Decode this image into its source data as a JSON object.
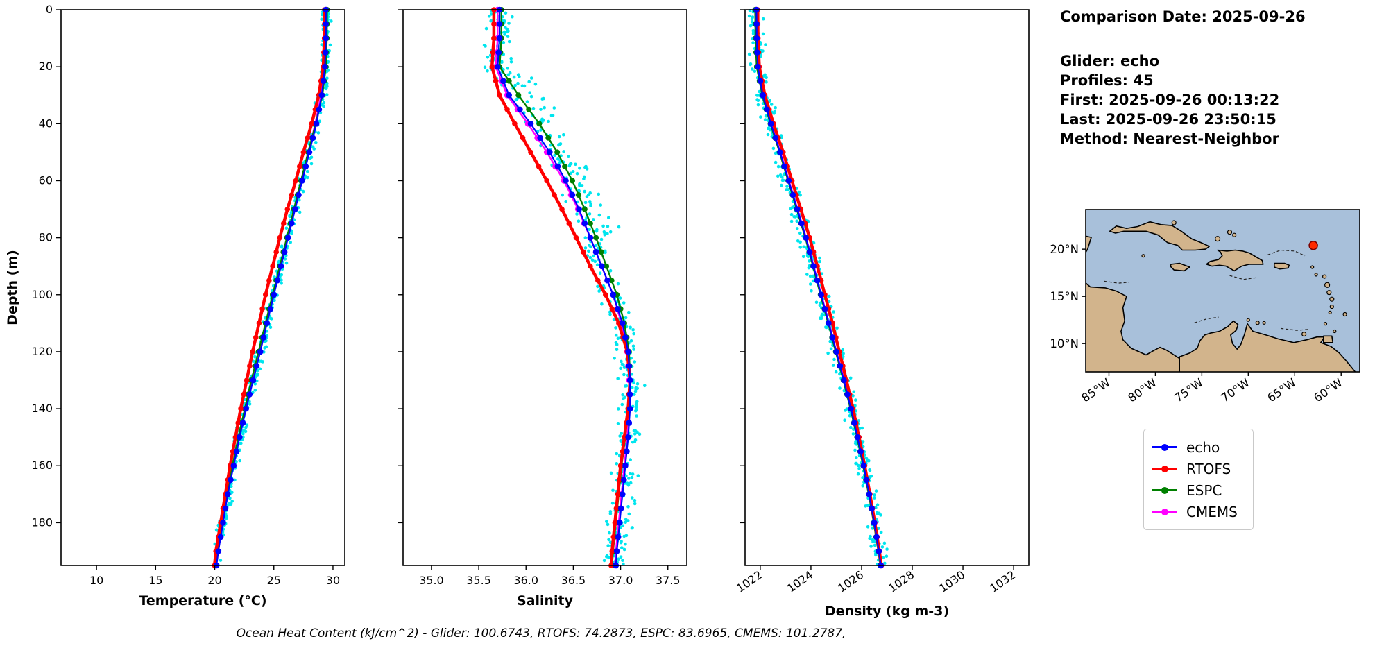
{
  "info_panel": {
    "title": "Comparison Date: 2025-09-26",
    "lines": [
      "Glider: echo",
      "Profiles: 45",
      "First: 2025-09-26 00:13:22",
      "Last: 2025-09-26 23:50:15",
      "Method: Nearest-Neighbor"
    ]
  },
  "legend": {
    "entries": [
      {
        "label": "echo",
        "color": "#0000ff"
      },
      {
        "label": "RTOFS",
        "color": "#ff0000"
      },
      {
        "label": "ESPC",
        "color": "#008000"
      },
      {
        "label": "CMEMS",
        "color": "#ff00ff"
      }
    ]
  },
  "caption": "Ocean Heat Content (kJ/cm^2) - Glider: 100.6743,  RTOFS: 74.2873,  ESPC: 83.6965,  CMEMS: 101.2787,",
  "colors": {
    "glider_scatter": "#00e5ee",
    "ocean": "#a8c0da",
    "land": "#d2b48c",
    "coastline": "#000000",
    "glider_marker_fill": "#ff2a00",
    "glider_marker_edge": "#7a0000"
  },
  "chart_data": [
    {
      "type": "line",
      "xlabel": "Temperature (°C)",
      "ylabel": "Depth (m)",
      "xlim": [
        7,
        31
      ],
      "ylim": [
        195,
        0
      ],
      "rotate_xticks": false,
      "xtick_vals": [
        10,
        15,
        20,
        25,
        30
      ],
      "xtick_labels": [
        "10",
        "15",
        "20",
        "25",
        "30"
      ],
      "ytick_vals": [
        0,
        20,
        40,
        60,
        80,
        100,
        120,
        140,
        160,
        180
      ],
      "depths": [
        0,
        10,
        20,
        30,
        40,
        50,
        60,
        70,
        80,
        90,
        100,
        110,
        120,
        130,
        140,
        150,
        160,
        170,
        180,
        190,
        195
      ],
      "series": [
        {
          "name": "echo",
          "color": "#0000ff",
          "values": [
            29.4,
            29.4,
            29.32,
            29.05,
            28.6,
            28.0,
            27.4,
            26.8,
            26.2,
            25.6,
            25.0,
            24.42,
            23.85,
            23.25,
            22.65,
            22.1,
            21.6,
            21.1,
            20.7,
            20.3,
            20.15
          ]
        },
        {
          "name": "RTOFS",
          "color": "#ff0000",
          "values": [
            29.3,
            29.28,
            29.18,
            28.8,
            28.2,
            27.5,
            26.85,
            26.15,
            25.5,
            24.9,
            24.3,
            23.75,
            23.2,
            22.7,
            22.2,
            21.75,
            21.3,
            20.9,
            20.5,
            20.1,
            19.98
          ]
        },
        {
          "name": "ESPC",
          "color": "#008000",
          "values": [
            29.5,
            29.48,
            29.4,
            29.1,
            28.55,
            27.9,
            27.3,
            26.7,
            26.1,
            25.5,
            24.9,
            24.3,
            23.7,
            23.1,
            22.55,
            22.0,
            21.5,
            21.0,
            20.6,
            20.2,
            20.05
          ]
        },
        {
          "name": "CMEMS",
          "color": "#ff00ff",
          "values": [
            29.45,
            29.42,
            29.3,
            29.0,
            28.5,
            27.95,
            27.35,
            26.75,
            26.15,
            25.55,
            24.95,
            24.35,
            23.78,
            23.2,
            22.6,
            22.05,
            21.55,
            21.05,
            20.65,
            20.25,
            20.1
          ]
        }
      ],
      "scatter": {
        "name": "glider raw profiles",
        "amplitude": 0.35
      }
    },
    {
      "type": "line",
      "xlabel": "Salinity",
      "ylabel": "",
      "xlim": [
        34.7,
        37.7
      ],
      "ylim": [
        195,
        0
      ],
      "rotate_xticks": false,
      "xtick_vals": [
        35.0,
        35.5,
        36.0,
        36.5,
        37.0,
        37.5
      ],
      "xtick_labels": [
        "35.0",
        "35.5",
        "36.0",
        "36.5",
        "37.0",
        "37.5"
      ],
      "ytick_vals": [
        0,
        20,
        40,
        60,
        80,
        100,
        120,
        140,
        160,
        180
      ],
      "depths": [
        0,
        10,
        20,
        30,
        40,
        50,
        60,
        70,
        80,
        90,
        100,
        110,
        120,
        130,
        140,
        150,
        160,
        170,
        180,
        190,
        195
      ],
      "series": [
        {
          "name": "echo",
          "color": "#0000ff",
          "values": [
            35.72,
            35.72,
            35.7,
            35.82,
            36.05,
            36.25,
            36.42,
            36.56,
            36.68,
            36.8,
            36.92,
            37.02,
            37.08,
            37.1,
            37.1,
            37.08,
            37.05,
            37.02,
            36.99,
            36.96,
            36.95
          ]
        },
        {
          "name": "RTOFS",
          "color": "#ff0000",
          "values": [
            35.66,
            35.66,
            35.64,
            35.72,
            35.88,
            36.05,
            36.22,
            36.38,
            36.53,
            36.68,
            36.84,
            36.98,
            37.07,
            37.1,
            37.08,
            37.04,
            37.0,
            36.97,
            36.94,
            36.91,
            36.9
          ]
        },
        {
          "name": "ESPC",
          "color": "#008000",
          "values": [
            35.74,
            35.74,
            35.72,
            35.92,
            36.14,
            36.33,
            36.49,
            36.62,
            36.74,
            36.85,
            36.96,
            37.04,
            37.09,
            37.1,
            37.08,
            37.05,
            37.01,
            36.98,
            36.95,
            36.92,
            36.91
          ]
        },
        {
          "name": "CMEMS",
          "color": "#ff00ff",
          "values": [
            35.7,
            35.7,
            35.68,
            35.8,
            36.02,
            36.22,
            36.4,
            36.55,
            36.68,
            36.8,
            36.92,
            37.01,
            37.07,
            37.09,
            37.09,
            37.07,
            37.04,
            37.01,
            36.98,
            36.95,
            36.94
          ]
        }
      ],
      "scatter": {
        "name": "glider raw profiles",
        "amplitude": 0.12,
        "asym": 0.25
      }
    },
    {
      "type": "line",
      "xlabel": "Density (kg m-3)",
      "ylabel": "",
      "xlim": [
        1021.4,
        1032.6
      ],
      "ylim": [
        195,
        0
      ],
      "rotate_xticks": true,
      "xtick_vals": [
        1022,
        1024,
        1026,
        1028,
        1030,
        1032
      ],
      "xtick_labels": [
        "1022",
        "1024",
        "1026",
        "1028",
        "1030",
        "1032"
      ],
      "ytick_vals": [
        0,
        20,
        40,
        60,
        80,
        100,
        120,
        140,
        160,
        180
      ],
      "depths": [
        0,
        10,
        20,
        30,
        40,
        50,
        60,
        70,
        80,
        90,
        100,
        110,
        120,
        130,
        140,
        150,
        160,
        170,
        180,
        190,
        195
      ],
      "series": [
        {
          "name": "echo",
          "color": "#0000ff",
          "values": [
            1021.85,
            1021.86,
            1021.9,
            1022.1,
            1022.42,
            1022.78,
            1023.12,
            1023.46,
            1023.8,
            1024.1,
            1024.4,
            1024.7,
            1025.0,
            1025.3,
            1025.58,
            1025.84,
            1026.08,
            1026.3,
            1026.5,
            1026.68,
            1026.76
          ]
        },
        {
          "name": "RTOFS",
          "color": "#ff0000",
          "values": [
            1021.9,
            1021.91,
            1021.96,
            1022.18,
            1022.52,
            1022.9,
            1023.25,
            1023.6,
            1023.95,
            1024.25,
            1024.55,
            1024.85,
            1025.12,
            1025.4,
            1025.66,
            1025.9,
            1026.12,
            1026.33,
            1026.52,
            1026.7,
            1026.78
          ]
        },
        {
          "name": "ESPC",
          "color": "#008000",
          "values": [
            1021.8,
            1021.81,
            1021.86,
            1022.08,
            1022.4,
            1022.76,
            1023.1,
            1023.44,
            1023.78,
            1024.08,
            1024.38,
            1024.68,
            1024.98,
            1025.28,
            1025.56,
            1025.82,
            1026.06,
            1026.28,
            1026.48,
            1026.66,
            1026.74
          ]
        },
        {
          "name": "CMEMS",
          "color": "#ff00ff",
          "values": [
            1021.83,
            1021.84,
            1021.89,
            1022.1,
            1022.43,
            1022.79,
            1023.13,
            1023.47,
            1023.81,
            1024.11,
            1024.41,
            1024.71,
            1025.01,
            1025.31,
            1025.59,
            1025.85,
            1026.09,
            1026.31,
            1026.51,
            1026.69,
            1026.77
          ]
        }
      ],
      "scatter": {
        "name": "glider raw profiles",
        "amplitude": 0.28
      }
    },
    {
      "type": "map",
      "lon_range": [
        -87.5,
        -58.0
      ],
      "lat_range": [
        7.0,
        24.2
      ],
      "xtick_vals": [
        -85,
        -80,
        -75,
        -70,
        -65,
        -60
      ],
      "xtick_labels": [
        "85°W",
        "80°W",
        "75°W",
        "70°W",
        "65°W",
        "60°W"
      ],
      "ytick_vals": [
        20,
        15,
        10
      ],
      "ytick_labels": [
        "20°N",
        "15°N",
        "10°N"
      ],
      "glider_position": {
        "lon": -63.0,
        "lat": 20.4
      }
    }
  ]
}
